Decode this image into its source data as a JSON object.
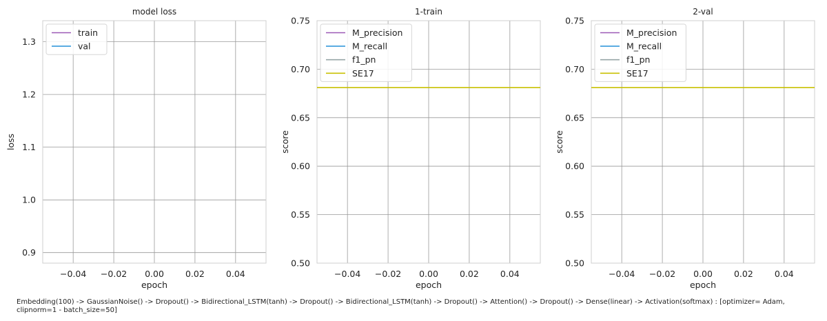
{
  "caption": "Embedding(100) -> GaussianNoise() -> Dropout() -> Bidirectional_LSTM(tanh) -> Dropout() -> Bidirectional_LSTM(tanh) -> Dropout() -> Attention() -> Dropout() -> Dense(linear) -> Activation(softmax) : [optimizer= Adam, clipnorm=1 - batch_size=50]",
  "chart_data": [
    {
      "type": "line",
      "title": "model loss",
      "xlabel": "epoch",
      "ylabel": "loss",
      "xlim": [
        -0.055,
        0.055
      ],
      "ylim": [
        0.88,
        1.34
      ],
      "xticks": [
        -0.04,
        -0.02,
        0.0,
        0.02,
        0.04
      ],
      "xtick_labels": [
        "−0.04",
        "−0.02",
        "0.00",
        "0.02",
        "0.04"
      ],
      "yticks": [
        0.9,
        1.0,
        1.1,
        1.2,
        1.3
      ],
      "ytick_labels": [
        "0.9",
        "1.0",
        "1.1",
        "1.2",
        "1.3"
      ],
      "grid": true,
      "legend": "upper-left",
      "series": [
        {
          "name": "train",
          "color": "#9b59b6",
          "hline": null
        },
        {
          "name": "val",
          "color": "#3498db",
          "hline": null
        }
      ]
    },
    {
      "type": "line",
      "title": "1-train",
      "xlabel": "epoch",
      "ylabel": "score",
      "xlim": [
        -0.055,
        0.055
      ],
      "ylim": [
        0.5,
        0.75
      ],
      "xticks": [
        -0.04,
        -0.02,
        0.0,
        0.02,
        0.04
      ],
      "xtick_labels": [
        "−0.04",
        "−0.02",
        "0.00",
        "0.02",
        "0.04"
      ],
      "yticks": [
        0.5,
        0.55,
        0.6,
        0.65,
        0.7,
        0.75
      ],
      "ytick_labels": [
        "0.50",
        "0.55",
        "0.60",
        "0.65",
        "0.70",
        "0.75"
      ],
      "grid": true,
      "legend": "upper-left",
      "series": [
        {
          "name": "M_precision",
          "color": "#9b59b6",
          "hline": null
        },
        {
          "name": "M_recall",
          "color": "#3498db",
          "hline": null
        },
        {
          "name": "f1_pn",
          "color": "#95a5a6",
          "hline": null
        },
        {
          "name": "SE17",
          "color": "#c8c000",
          "hline": 0.681
        }
      ]
    },
    {
      "type": "line",
      "title": "2-val",
      "xlabel": "epoch",
      "ylabel": "score",
      "xlim": [
        -0.055,
        0.055
      ],
      "ylim": [
        0.5,
        0.75
      ],
      "xticks": [
        -0.04,
        -0.02,
        0.0,
        0.02,
        0.04
      ],
      "xtick_labels": [
        "−0.04",
        "−0.02",
        "0.00",
        "0.02",
        "0.04"
      ],
      "yticks": [
        0.5,
        0.55,
        0.6,
        0.65,
        0.7,
        0.75
      ],
      "ytick_labels": [
        "0.50",
        "0.55",
        "0.60",
        "0.65",
        "0.70",
        "0.75"
      ],
      "grid": true,
      "legend": "upper-left",
      "series": [
        {
          "name": "M_precision",
          "color": "#9b59b6",
          "hline": null
        },
        {
          "name": "M_recall",
          "color": "#3498db",
          "hline": null
        },
        {
          "name": "f1_pn",
          "color": "#95a5a6",
          "hline": null
        },
        {
          "name": "SE17",
          "color": "#c8c000",
          "hline": 0.681
        }
      ]
    }
  ]
}
